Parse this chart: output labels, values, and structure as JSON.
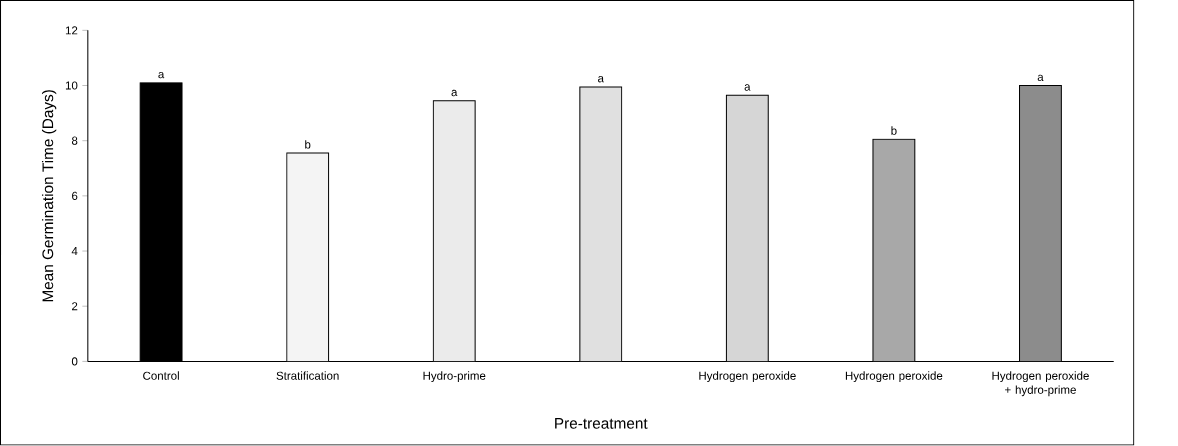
{
  "chart_data": {
    "type": "bar",
    "xlabel": "Pre-treatment",
    "ylabel": "Mean Germination Time (Days)",
    "categories": [
      "Control",
      "Stratification",
      "Hydro-prime",
      null,
      "Hydrogen peroxide",
      "Hydrogen peroxide",
      "Hydrogen peroxide + hydro-prime"
    ],
    "values": [
      10.1,
      7.55,
      9.45,
      9.95,
      9.65,
      8.05,
      10.0
    ],
    "colors": [
      "#000000",
      "#f4f4f4",
      "#ebebeb",
      "#e0e0e0",
      "#d6d6d6",
      "#a8a8a8",
      "#8c8c8c"
    ],
    "value_labels": [
      "a",
      "b",
      "a",
      "a",
      "a",
      "b",
      "a"
    ],
    "ylim": [
      0,
      12
    ],
    "yticks": [
      0,
      2,
      4,
      6,
      8,
      10,
      12
    ],
    "grid": false
  }
}
